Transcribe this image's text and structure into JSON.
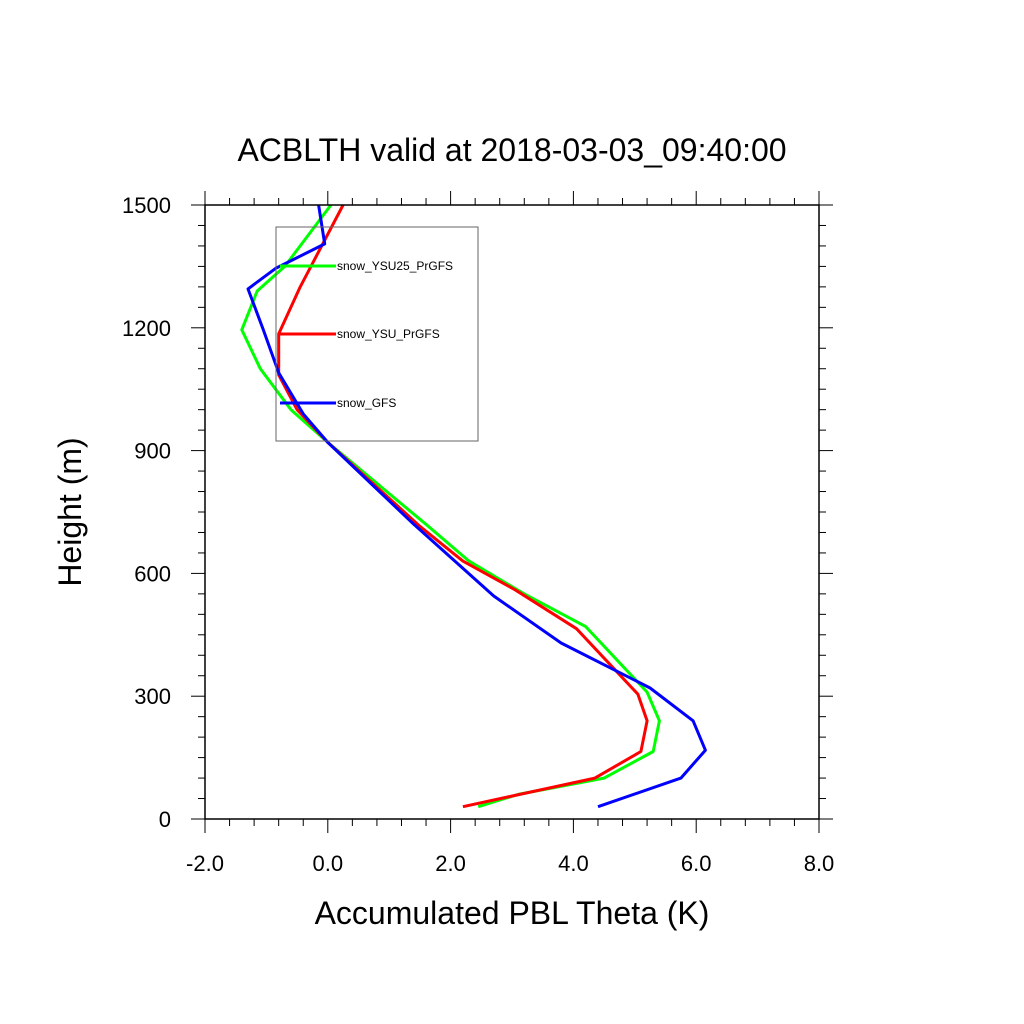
{
  "chart_data": {
    "type": "line",
    "title": "ACBLTH valid at 2018-03-03_09:40:00",
    "xlabel": "Accumulated PBL Theta (K)",
    "ylabel": "Height (m)",
    "xlim": [
      -2.0,
      8.0
    ],
    "ylim": [
      0,
      1500
    ],
    "xticks": [
      -2.0,
      0.0,
      2.0,
      4.0,
      6.0,
      8.0
    ],
    "xtick_labels": [
      "-2.0",
      "0.0",
      "2.0",
      "4.0",
      "6.0",
      "8.0"
    ],
    "yticks": [
      0,
      300,
      600,
      900,
      1200,
      1500
    ],
    "ytick_labels": [
      "0",
      "300",
      "600",
      "900",
      "1200",
      "1500"
    ],
    "grid": false,
    "legend_position": "top-left",
    "series": [
      {
        "name": "snow_YSU25_PrGFS",
        "color": "#00ff00",
        "x": [
          2.45,
          3.1,
          4.5,
          5.3,
          5.4,
          5.2,
          4.2,
          3.2,
          2.3,
          1.6,
          0.0,
          -0.6,
          -1.1,
          -1.4,
          -1.15,
          -0.7,
          0.05
        ],
        "y": [
          30,
          60,
          100,
          165,
          240,
          310,
          470,
          550,
          630,
          720,
          920,
          1000,
          1100,
          1195,
          1290,
          1350,
          1500
        ]
      },
      {
        "name": "snow_YSU_PrGFS",
        "color": "#ff0000",
        "x": [
          2.2,
          4.35,
          5.1,
          5.2,
          5.05,
          4.05,
          3.05,
          2.2,
          1.5,
          0.0,
          -0.5,
          -0.8,
          -0.8,
          -0.45,
          0.25
        ],
        "y": [
          30,
          100,
          165,
          240,
          305,
          465,
          560,
          630,
          715,
          920,
          1000,
          1085,
          1185,
          1300,
          1500
        ]
      },
      {
        "name": "snow_GFS",
        "color": "#0000ff",
        "x": [
          4.4,
          5.75,
          6.15,
          5.95,
          5.25,
          3.8,
          2.7,
          1.4,
          0.0,
          -0.4,
          -0.8,
          -1.05,
          -1.3,
          -0.85,
          -0.05,
          -0.15
        ],
        "y": [
          30,
          100,
          168,
          240,
          320,
          430,
          545,
          720,
          920,
          990,
          1090,
          1195,
          1295,
          1345,
          1405,
          1500
        ]
      }
    ]
  }
}
